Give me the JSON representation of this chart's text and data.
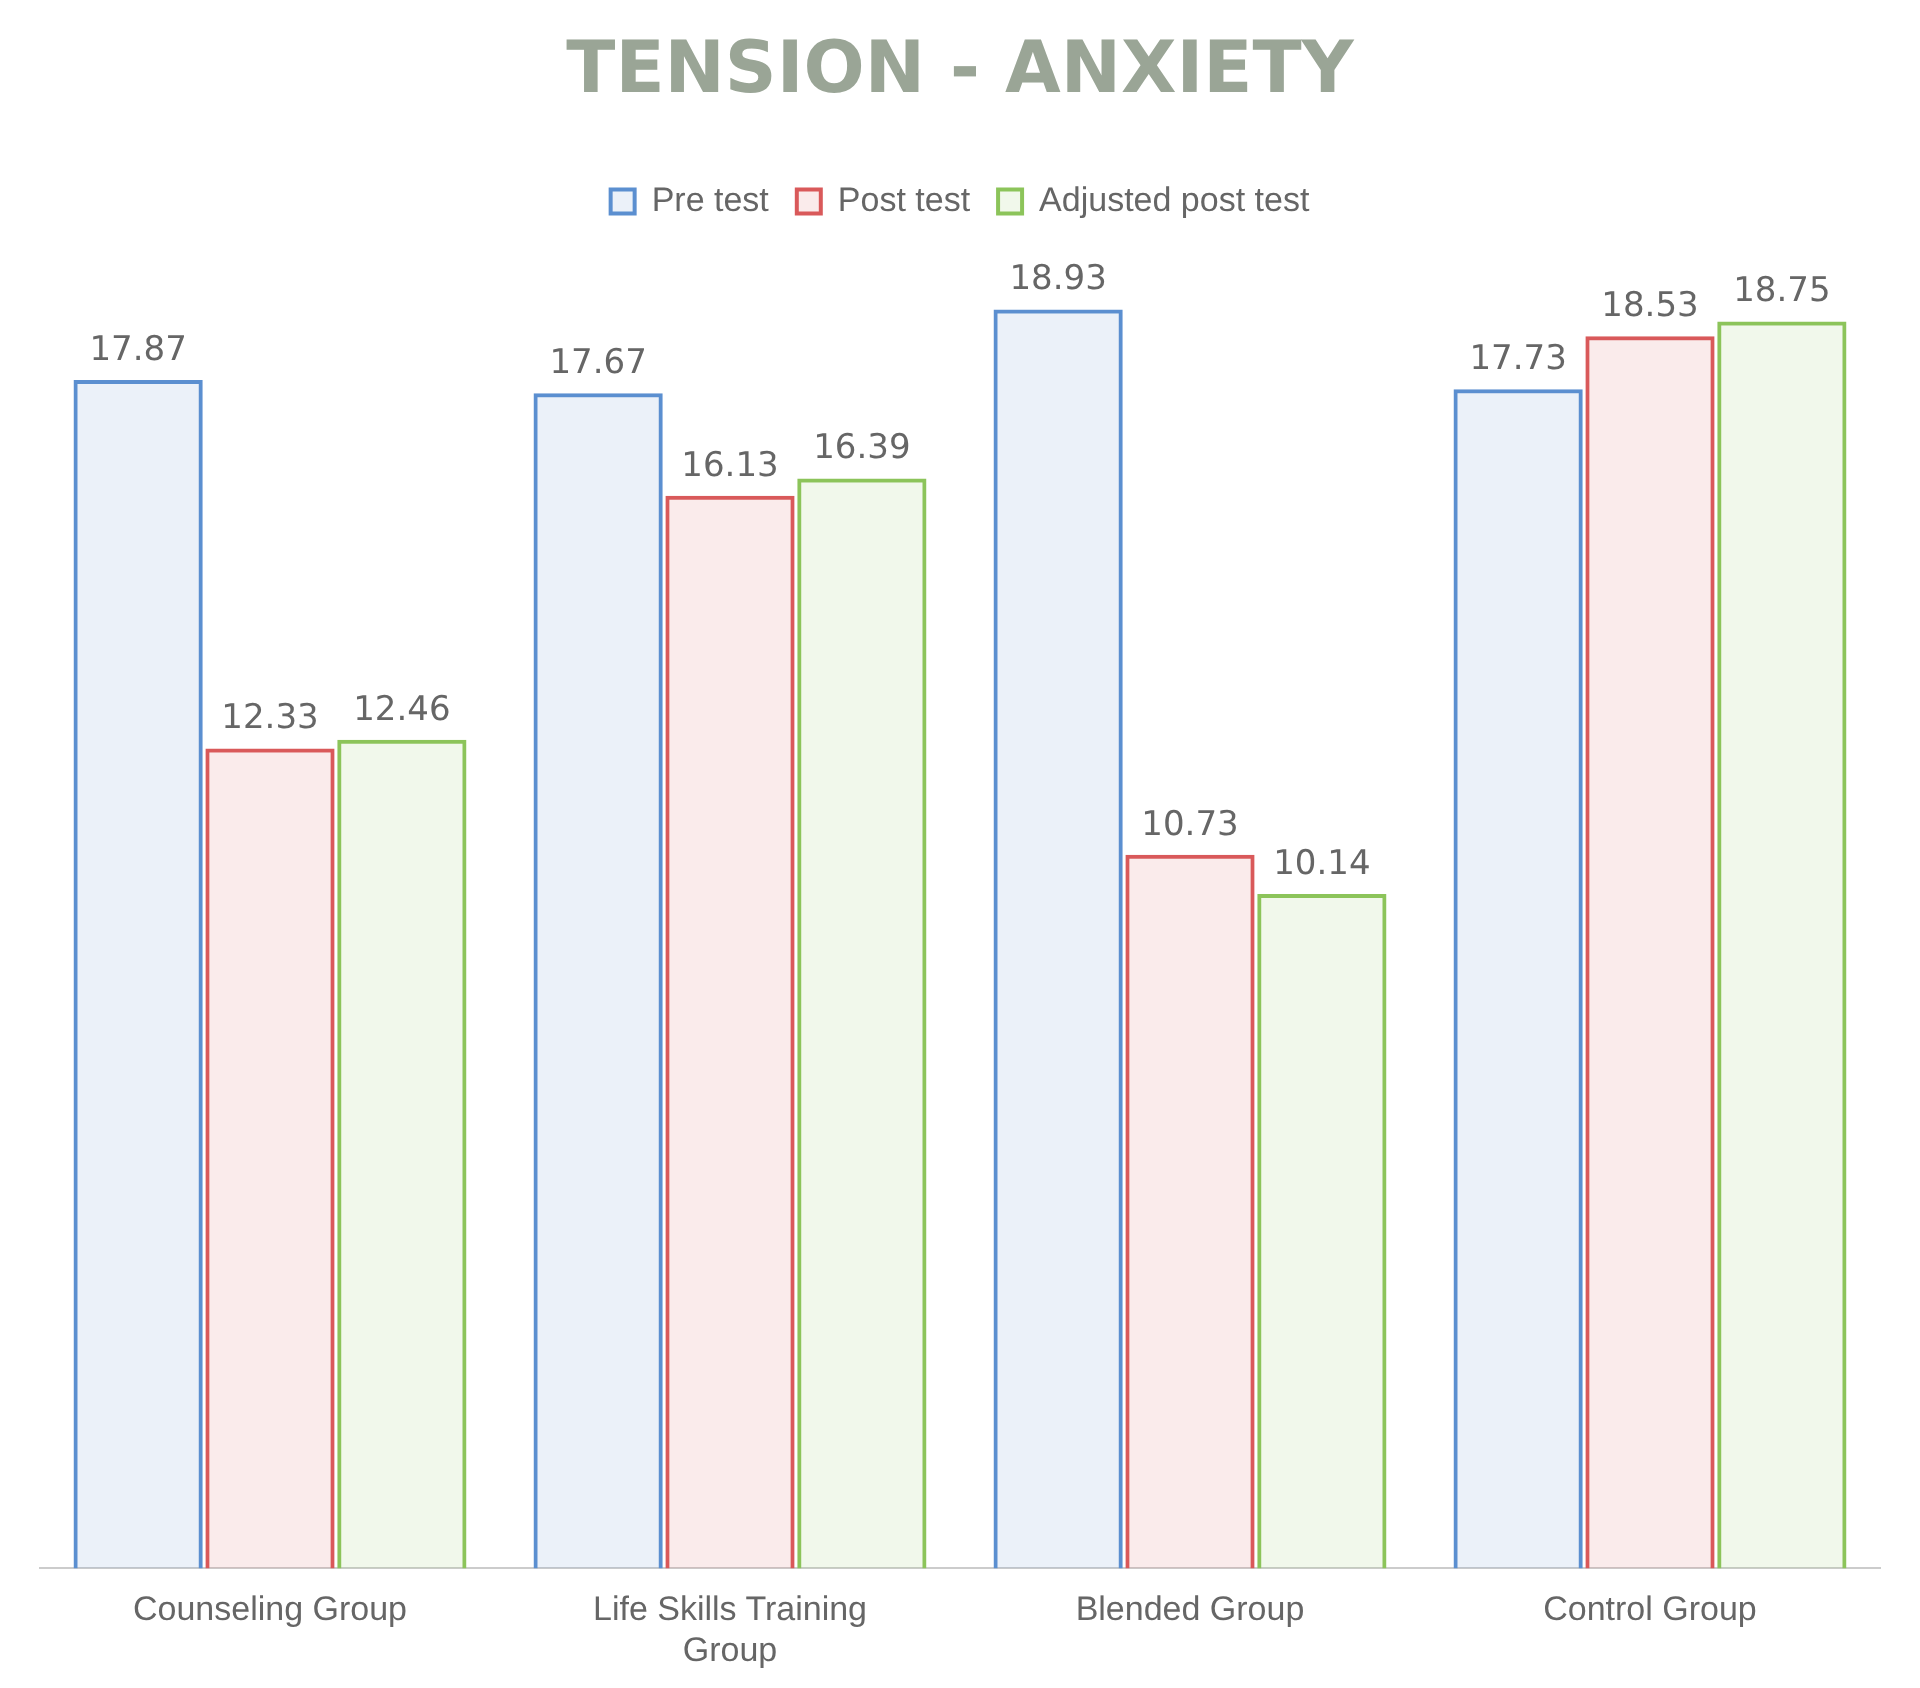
{
  "chart_data": {
    "type": "bar",
    "title": "TENSION - ANXIETY",
    "categories": [
      "Counseling Group",
      "Life Skills Training Group",
      "Blended Group",
      "Control Group"
    ],
    "series": [
      {
        "name": "Pre test",
        "color": "#5b8fd0",
        "values": [
          17.87,
          17.67,
          18.93,
          17.73
        ]
      },
      {
        "name": "Post test",
        "color": "#d9595a",
        "values": [
          12.33,
          16.13,
          10.73,
          18.53
        ]
      },
      {
        "name": "Adjusted post test",
        "color": "#8cc45a",
        "values": [
          12.46,
          16.39,
          10.14,
          18.75
        ]
      }
    ],
    "data_labels": true,
    "grid": false,
    "legend": "top"
  }
}
